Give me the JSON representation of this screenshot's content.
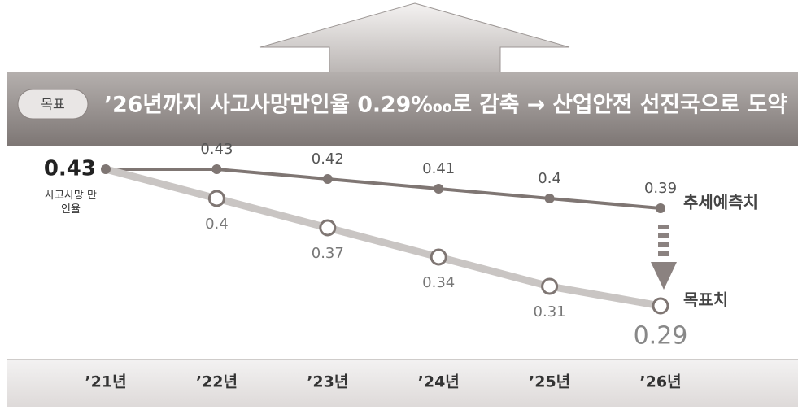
{
  "chart_data": {
    "type": "line",
    "badge": "목표",
    "title": "’26년까지 사고사망만인율 0.29‱로 감축 → 산업안전 선진국으로 도약",
    "y_label": "사고사망 만인율",
    "categories": [
      "’21년",
      "’22년",
      "’23년",
      "’24년",
      "’25년",
      "’26년"
    ],
    "series": [
      {
        "name": "추세예측치",
        "color": "#7f7673",
        "values": [
          0.43,
          0.43,
          0.42,
          0.41,
          0.4,
          0.39
        ]
      },
      {
        "name": "목표치",
        "color": "#c9c5c3",
        "values": [
          0.43,
          0.4,
          0.37,
          0.34,
          0.31,
          0.29
        ]
      }
    ],
    "ylim": [
      0.27,
      0.45
    ]
  }
}
